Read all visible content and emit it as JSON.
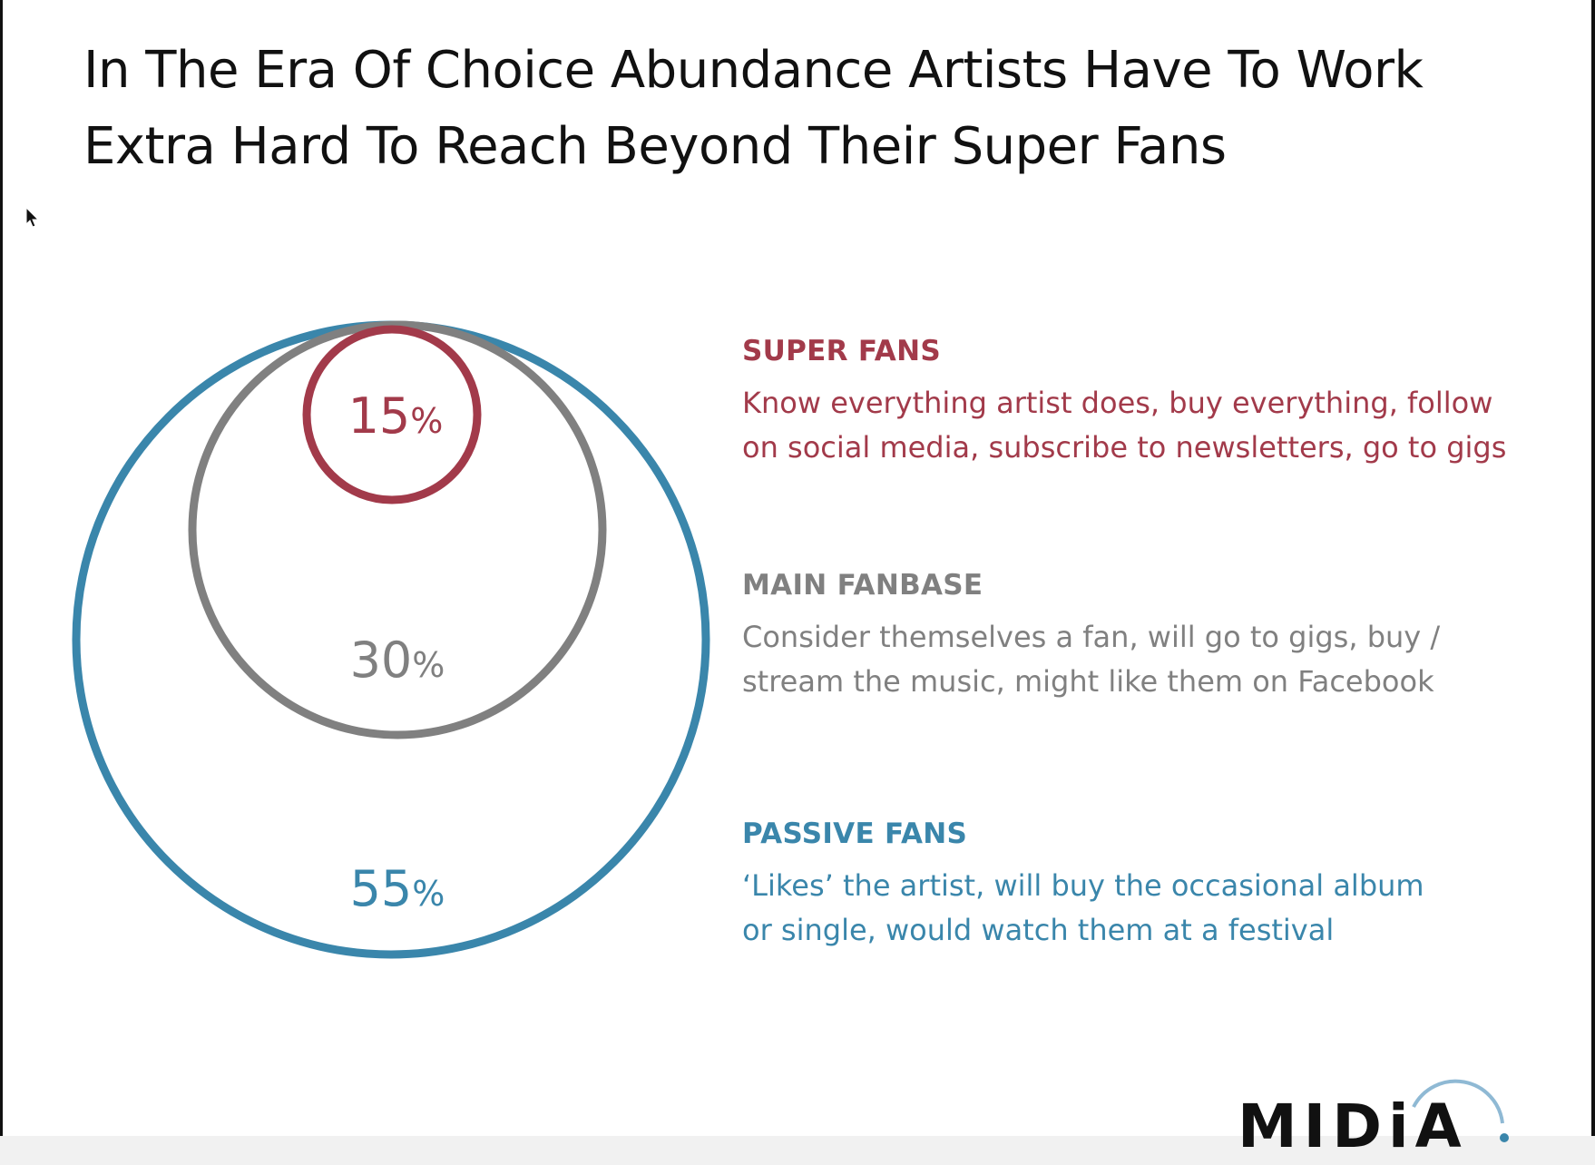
{
  "title": {
    "line1": "In The Era Of Choice Abundance Artists Have To Work",
    "line2": "Extra Hard To Reach Beyond Their Super Fans"
  },
  "colors": {
    "super_fans": "#a23a4a",
    "main_fanbase": "#808080",
    "passive_fans": "#3a86ab"
  },
  "diagram": {
    "circles": [
      {
        "id": "passive",
        "value": "55",
        "unit": "%",
        "fraction": 0.55
      },
      {
        "id": "main",
        "value": "30",
        "unit": "%",
        "fraction": 0.3
      },
      {
        "id": "super",
        "value": "15",
        "unit": "%",
        "fraction": 0.15
      }
    ]
  },
  "legend": {
    "super": {
      "heading": "SUPER FANS",
      "line1": "Know everything artist does, buy everything, follow",
      "line2": "on social media, subscribe to newsletters, go to gigs"
    },
    "main": {
      "heading": "MAIN FANBASE",
      "line1": "Consider themselves a fan, will go to gigs, buy /",
      "line2": "stream the music, might like them on Facebook"
    },
    "passive": {
      "heading": "PASSIVE FANS",
      "line1": "‘Likes’ the artist, will buy the occasional album",
      "line2": "or single, would watch them at a festival"
    }
  },
  "logo": {
    "text": "MIDiA",
    "icon": "midia-logo"
  },
  "icons": {
    "cursor": "mouse-pointer-icon"
  }
}
